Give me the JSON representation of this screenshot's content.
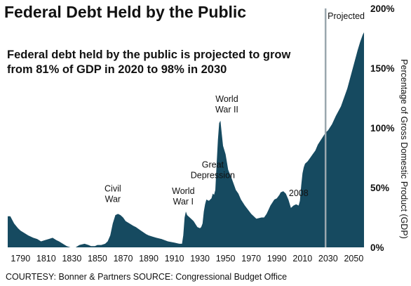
{
  "title": "Federal Debt Held by the Public",
  "subtitle": "Federal debt held by the public is projected to grow from 81% of GDP in 2020 to 98% in 2030",
  "credit": "COURTESY:  Bonner & Partners  SOURCE: Congressional Budget Office",
  "colors": {
    "area": "#164a60",
    "text": "#111111",
    "projection_line": "#9aa7ae",
    "background": "#ffffff"
  },
  "chart_data": {
    "type": "area",
    "ylabel": "Percentage of Gross Domestic Product (GDP)",
    "xlim": [
      1780,
      2058
    ],
    "ylim": [
      0,
      200
    ],
    "x_ticks": [
      1790,
      1810,
      1830,
      1850,
      1870,
      1890,
      1910,
      1930,
      1950,
      1970,
      1990,
      2010,
      2030,
      2050
    ],
    "y_ticks": [
      {
        "value": 0,
        "label": "0%"
      },
      {
        "value": 50,
        "label": "50%"
      },
      {
        "value": 100,
        "label": "100%"
      },
      {
        "value": 150,
        "label": "150%"
      },
      {
        "value": 200,
        "label": "200%"
      }
    ],
    "projection_start": 2028,
    "projection_label": "Projected",
    "series": [
      {
        "x": [
          1780,
          1782,
          1785,
          1788,
          1790,
          1793,
          1796,
          1800,
          1803,
          1806,
          1809,
          1812,
          1815,
          1818,
          1820,
          1823,
          1826,
          1829,
          1831,
          1833,
          1836,
          1840,
          1843,
          1845,
          1848,
          1850,
          1853,
          1856,
          1858,
          1860,
          1862,
          1864,
          1866,
          1868,
          1870,
          1872,
          1875,
          1878,
          1880,
          1884,
          1888,
          1890,
          1893,
          1896,
          1900,
          1905,
          1910,
          1914,
          1916,
          1917,
          1918,
          1919,
          1920,
          1922,
          1925,
          1928,
          1930,
          1931,
          1932,
          1933,
          1934,
          1935,
          1937,
          1939,
          1940,
          1941,
          1942,
          1943,
          1944,
          1945,
          1946,
          1947,
          1948,
          1950,
          1952,
          1955,
          1958,
          1960,
          1962,
          1965,
          1970,
          1974,
          1978,
          1980,
          1982,
          1985,
          1988,
          1990,
          1992,
          1993,
          1995,
          1997,
          1999,
          2001,
          2003,
          2005,
          2007,
          2008,
          2009,
          2010,
          2011,
          2012,
          2014,
          2016,
          2018,
          2020,
          2022,
          2025,
          2028,
          2030,
          2033,
          2036,
          2040,
          2045,
          2050,
          2053,
          2055,
          2057,
          2058
        ],
        "values": [
          26,
          26,
          20,
          16,
          14,
          12,
          10,
          8,
          7,
          5,
          6,
          7,
          8,
          6,
          5,
          3,
          1,
          0,
          0,
          0,
          2,
          3,
          2,
          1,
          1,
          2,
          2,
          3,
          5,
          10,
          20,
          27,
          28,
          27,
          25,
          22,
          20,
          18,
          17,
          14,
          11,
          10,
          9,
          8,
          7,
          5,
          4,
          3,
          3,
          10,
          25,
          30,
          27,
          25,
          22,
          17,
          16,
          17,
          20,
          30,
          36,
          40,
          39,
          41,
          45,
          44,
          48,
          70,
          90,
          104,
          106,
          95,
          85,
          78,
          65,
          57,
          48,
          45,
          40,
          35,
          28,
          24,
          25,
          25,
          28,
          35,
          40,
          41,
          44,
          46,
          47,
          45,
          40,
          33,
          35,
          36,
          35,
          39,
          52,
          62,
          67,
          70,
          72,
          75,
          78,
          81,
          86,
          91,
          96,
          98,
          103,
          110,
          118,
          133,
          153,
          165,
          172,
          178,
          180
        ]
      }
    ],
    "annotations": [
      {
        "lines": [
          "Civil",
          "War"
        ],
        "x": 1862,
        "y": 38
      },
      {
        "lines": [
          "World",
          "War I"
        ],
        "x": 1917,
        "y": 36
      },
      {
        "lines": [
          "Great",
          "Depression"
        ],
        "x": 1940,
        "y": 58
      },
      {
        "lines": [
          "World",
          "War II"
        ],
        "x": 1951,
        "y": 113
      },
      {
        "lines": [
          "2008"
        ],
        "x": 2007,
        "y": 43
      }
    ]
  }
}
